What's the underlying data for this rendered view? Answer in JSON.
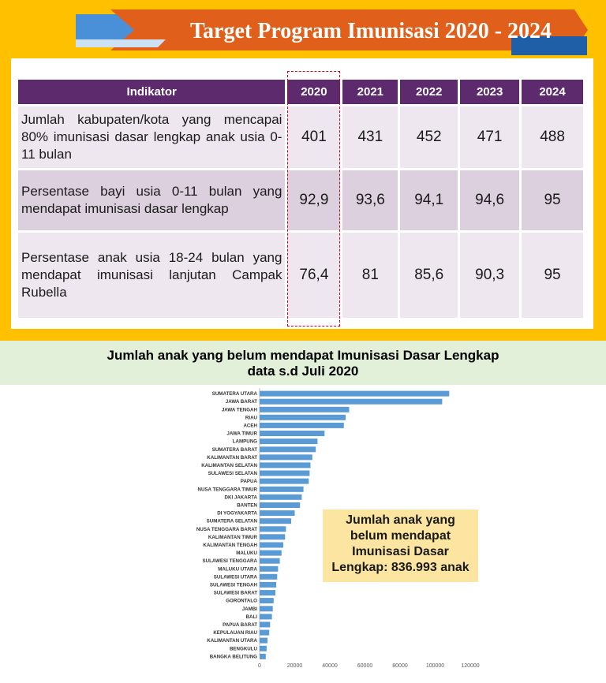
{
  "slide_title": "Target Program Imunisasi 2020 - 2024",
  "table": {
    "header": [
      "Indikator",
      "2020",
      "2021",
      "2022",
      "2023",
      "2024"
    ],
    "rows": [
      {
        "indicator": "Jumlah kabupaten/kota yang mencapai 80% imunisasi dasar lengkap anak usia 0-11 bulan",
        "values": [
          "401",
          "431",
          "452",
          "471",
          "488"
        ]
      },
      {
        "indicator": "Persentase bayi usia 0-11 bulan yang mendapat imunisasi dasar lengkap",
        "values": [
          "92,9",
          "93,6",
          "94,1",
          "94,6",
          "95"
        ]
      },
      {
        "indicator": "Persentase anak usia 18-24 bulan yang mendapat imunisasi lanjutan Campak Rubella",
        "values": [
          "76,4",
          "81",
          "85,6",
          "90,3",
          "95"
        ]
      }
    ]
  },
  "chart_heading": {
    "line1": "Jumlah anak yang belum mendapat Imunisasi Dasar Lengkap",
    "line2": "data s.d Juli 2020"
  },
  "callout": {
    "line1": "Jumlah anak yang",
    "line2": "belum mendapat",
    "line3": "Imunisasi Dasar",
    "line4": "Lengkap: 836.993 anak"
  },
  "colors": {
    "bar": "#5b9bd5",
    "table_header": "#5c2a6d",
    "panel": "#ffc000",
    "ribbon": "#e0601b",
    "accent_blue": "#1f5fa8"
  },
  "chart_data": {
    "type": "bar",
    "orientation": "horizontal",
    "title": "",
    "xlabel": "",
    "ylabel": "",
    "xlim": [
      0,
      120000
    ],
    "xticks": [
      "0",
      "20000",
      "40000",
      "60000",
      "80000",
      "100000",
      "120000"
    ],
    "categories": [
      "SUMATERA UTARA",
      "JAWA BARAT",
      "JAWA TENGAH",
      "RIAU",
      "ACEH",
      "JAWA TIMUR",
      "LAMPUNG",
      "SUMATERA BARAT",
      "KALIMANTAN BARAT",
      "KALIMANTAN SELATAN",
      "SULAWESI SELATAN",
      "PAPUA",
      "NUSA TENGGARA TIMUR",
      "DKI JAKARTA",
      "BANTEN",
      "DI YOGYAKARTA",
      "SUMATERA SELATAN",
      "NUSA TENGGARA BARAT",
      "KALIMANTAN TIMUR",
      "KALIMANTAN TENGAH",
      "MALUKU",
      "SULAWESI TENGGARA",
      "MALUKU UTARA",
      "SULAWESI UTARA",
      "SULAWESI TENGAH",
      "SULAWESI BARAT",
      "GORONTALO",
      "JAMBI",
      "BALI",
      "PAPUA BARAT",
      "KEPULAUAN RIAU",
      "KALIMANTAN UTARA",
      "BENGKULU",
      "BANGKA BELITUNG"
    ],
    "values": [
      108000,
      104000,
      51000,
      49000,
      48000,
      37000,
      33000,
      32000,
      30000,
      29000,
      28500,
      28000,
      25000,
      24000,
      23000,
      20000,
      18000,
      15000,
      14500,
      13500,
      12500,
      11500,
      10500,
      10000,
      9500,
      9000,
      8000,
      7500,
      7000,
      6000,
      5500,
      4500,
      4000,
      3500
    ],
    "grid": false,
    "legend": "none"
  }
}
